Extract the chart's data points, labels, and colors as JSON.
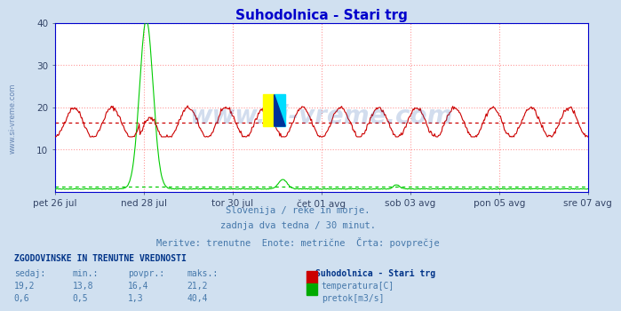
{
  "title": "Suhodolnica - Stari trg",
  "title_color": "#0000cc",
  "bg_color": "#d0e0f0",
  "plot_bg_color": "#ffffff",
  "grid_color": "#ff9999",
  "ylim": [
    0,
    40
  ],
  "yticks": [
    10,
    20,
    30,
    40
  ],
  "n_points": 672,
  "temp_color": "#cc0000",
  "flow_color": "#00cc00",
  "temp_avg": 16.4,
  "flow_avg": 1.3,
  "subtitle_color": "#4477aa",
  "subtitle_lines": [
    "Slovenija / reke in morje.",
    "zadnja dva tedna / 30 minut.",
    "Meritve: trenutne  Enote: metrične  Črta: povprečje"
  ],
  "table_header": "ZGODOVINSKE IN TRENUTNE VREDNOSTI",
  "table_cols": [
    "sedaj:",
    "min.:",
    "povpr.:",
    "maks.:"
  ],
  "table_station": "Suhodolnica - Stari trg",
  "table_rows": [
    {
      "sedaj": "19,2",
      "min": "13,8",
      "povpr": "16,4",
      "maks": "21,2",
      "color": "#cc0000",
      "label": "temperatura[C]"
    },
    {
      "sedaj": "0,6",
      "min": "0,5",
      "povpr": "1,3",
      "maks": "40,4",
      "color": "#00aa00",
      "label": "pretok[m3/s]"
    }
  ],
  "xticklabels": [
    "pet 26 jul",
    "ned 28 jul",
    "tor 30 jul",
    "čet 01 avg",
    "sob 03 avg",
    "pon 05 avg",
    "sre 07 avg"
  ],
  "spine_color": "#0000cc",
  "tick_color": "#334466",
  "left_label": "www.si-vreme.com",
  "watermark": "www.si-vreme.com"
}
